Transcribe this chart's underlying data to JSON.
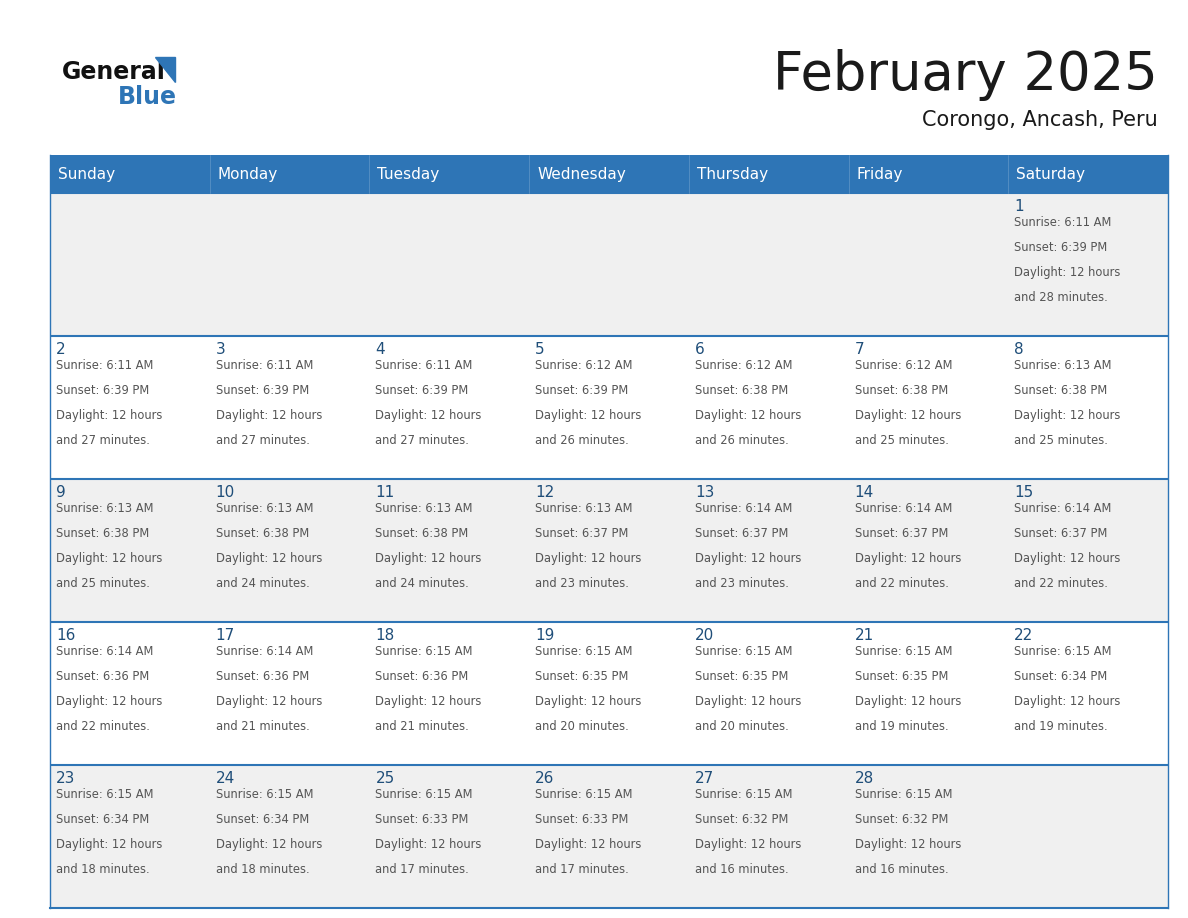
{
  "title": "February 2025",
  "subtitle": "Corongo, Ancash, Peru",
  "header_bg_color": "#2E75B6",
  "header_text_color": "#FFFFFF",
  "day_names": [
    "Sunday",
    "Monday",
    "Tuesday",
    "Wednesday",
    "Thursday",
    "Friday",
    "Saturday"
  ],
  "cell_bg_light": "#F0F0F0",
  "cell_bg_white": "#FFFFFF",
  "cell_border_color": "#2E75B6",
  "day_number_color": "#1F4E79",
  "info_text_color": "#555555",
  "title_color": "#1A1A1A",
  "subtitle_color": "#1A1A1A",
  "calendar": [
    [
      null,
      null,
      null,
      null,
      null,
      null,
      1
    ],
    [
      2,
      3,
      4,
      5,
      6,
      7,
      8
    ],
    [
      9,
      10,
      11,
      12,
      13,
      14,
      15
    ],
    [
      16,
      17,
      18,
      19,
      20,
      21,
      22
    ],
    [
      23,
      24,
      25,
      26,
      27,
      28,
      null
    ]
  ],
  "sun_data": {
    "1": {
      "rise": "6:11 AM",
      "set": "6:39 PM",
      "hours": "12 hours",
      "mins": "28 minutes"
    },
    "2": {
      "rise": "6:11 AM",
      "set": "6:39 PM",
      "hours": "12 hours",
      "mins": "27 minutes"
    },
    "3": {
      "rise": "6:11 AM",
      "set": "6:39 PM",
      "hours": "12 hours",
      "mins": "27 minutes"
    },
    "4": {
      "rise": "6:11 AM",
      "set": "6:39 PM",
      "hours": "12 hours",
      "mins": "27 minutes"
    },
    "5": {
      "rise": "6:12 AM",
      "set": "6:39 PM",
      "hours": "12 hours",
      "mins": "26 minutes"
    },
    "6": {
      "rise": "6:12 AM",
      "set": "6:38 PM",
      "hours": "12 hours",
      "mins": "26 minutes"
    },
    "7": {
      "rise": "6:12 AM",
      "set": "6:38 PM",
      "hours": "12 hours",
      "mins": "25 minutes"
    },
    "8": {
      "rise": "6:13 AM",
      "set": "6:38 PM",
      "hours": "12 hours",
      "mins": "25 minutes"
    },
    "9": {
      "rise": "6:13 AM",
      "set": "6:38 PM",
      "hours": "12 hours",
      "mins": "25 minutes"
    },
    "10": {
      "rise": "6:13 AM",
      "set": "6:38 PM",
      "hours": "12 hours",
      "mins": "24 minutes"
    },
    "11": {
      "rise": "6:13 AM",
      "set": "6:38 PM",
      "hours": "12 hours",
      "mins": "24 minutes"
    },
    "12": {
      "rise": "6:13 AM",
      "set": "6:37 PM",
      "hours": "12 hours",
      "mins": "23 minutes"
    },
    "13": {
      "rise": "6:14 AM",
      "set": "6:37 PM",
      "hours": "12 hours",
      "mins": "23 minutes"
    },
    "14": {
      "rise": "6:14 AM",
      "set": "6:37 PM",
      "hours": "12 hours",
      "mins": "22 minutes"
    },
    "15": {
      "rise": "6:14 AM",
      "set": "6:37 PM",
      "hours": "12 hours",
      "mins": "22 minutes"
    },
    "16": {
      "rise": "6:14 AM",
      "set": "6:36 PM",
      "hours": "12 hours",
      "mins": "22 minutes"
    },
    "17": {
      "rise": "6:14 AM",
      "set": "6:36 PM",
      "hours": "12 hours",
      "mins": "21 minutes"
    },
    "18": {
      "rise": "6:15 AM",
      "set": "6:36 PM",
      "hours": "12 hours",
      "mins": "21 minutes"
    },
    "19": {
      "rise": "6:15 AM",
      "set": "6:35 PM",
      "hours": "12 hours",
      "mins": "20 minutes"
    },
    "20": {
      "rise": "6:15 AM",
      "set": "6:35 PM",
      "hours": "12 hours",
      "mins": "20 minutes"
    },
    "21": {
      "rise": "6:15 AM",
      "set": "6:35 PM",
      "hours": "12 hours",
      "mins": "19 minutes"
    },
    "22": {
      "rise": "6:15 AM",
      "set": "6:34 PM",
      "hours": "12 hours",
      "mins": "19 minutes"
    },
    "23": {
      "rise": "6:15 AM",
      "set": "6:34 PM",
      "hours": "12 hours",
      "mins": "18 minutes"
    },
    "24": {
      "rise": "6:15 AM",
      "set": "6:34 PM",
      "hours": "12 hours",
      "mins": "18 minutes"
    },
    "25": {
      "rise": "6:15 AM",
      "set": "6:33 PM",
      "hours": "12 hours",
      "mins": "17 minutes"
    },
    "26": {
      "rise": "6:15 AM",
      "set": "6:33 PM",
      "hours": "12 hours",
      "mins": "17 minutes"
    },
    "27": {
      "rise": "6:15 AM",
      "set": "6:32 PM",
      "hours": "12 hours",
      "mins": "16 minutes"
    },
    "28": {
      "rise": "6:15 AM",
      "set": "6:32 PM",
      "hours": "12 hours",
      "mins": "16 minutes"
    }
  }
}
